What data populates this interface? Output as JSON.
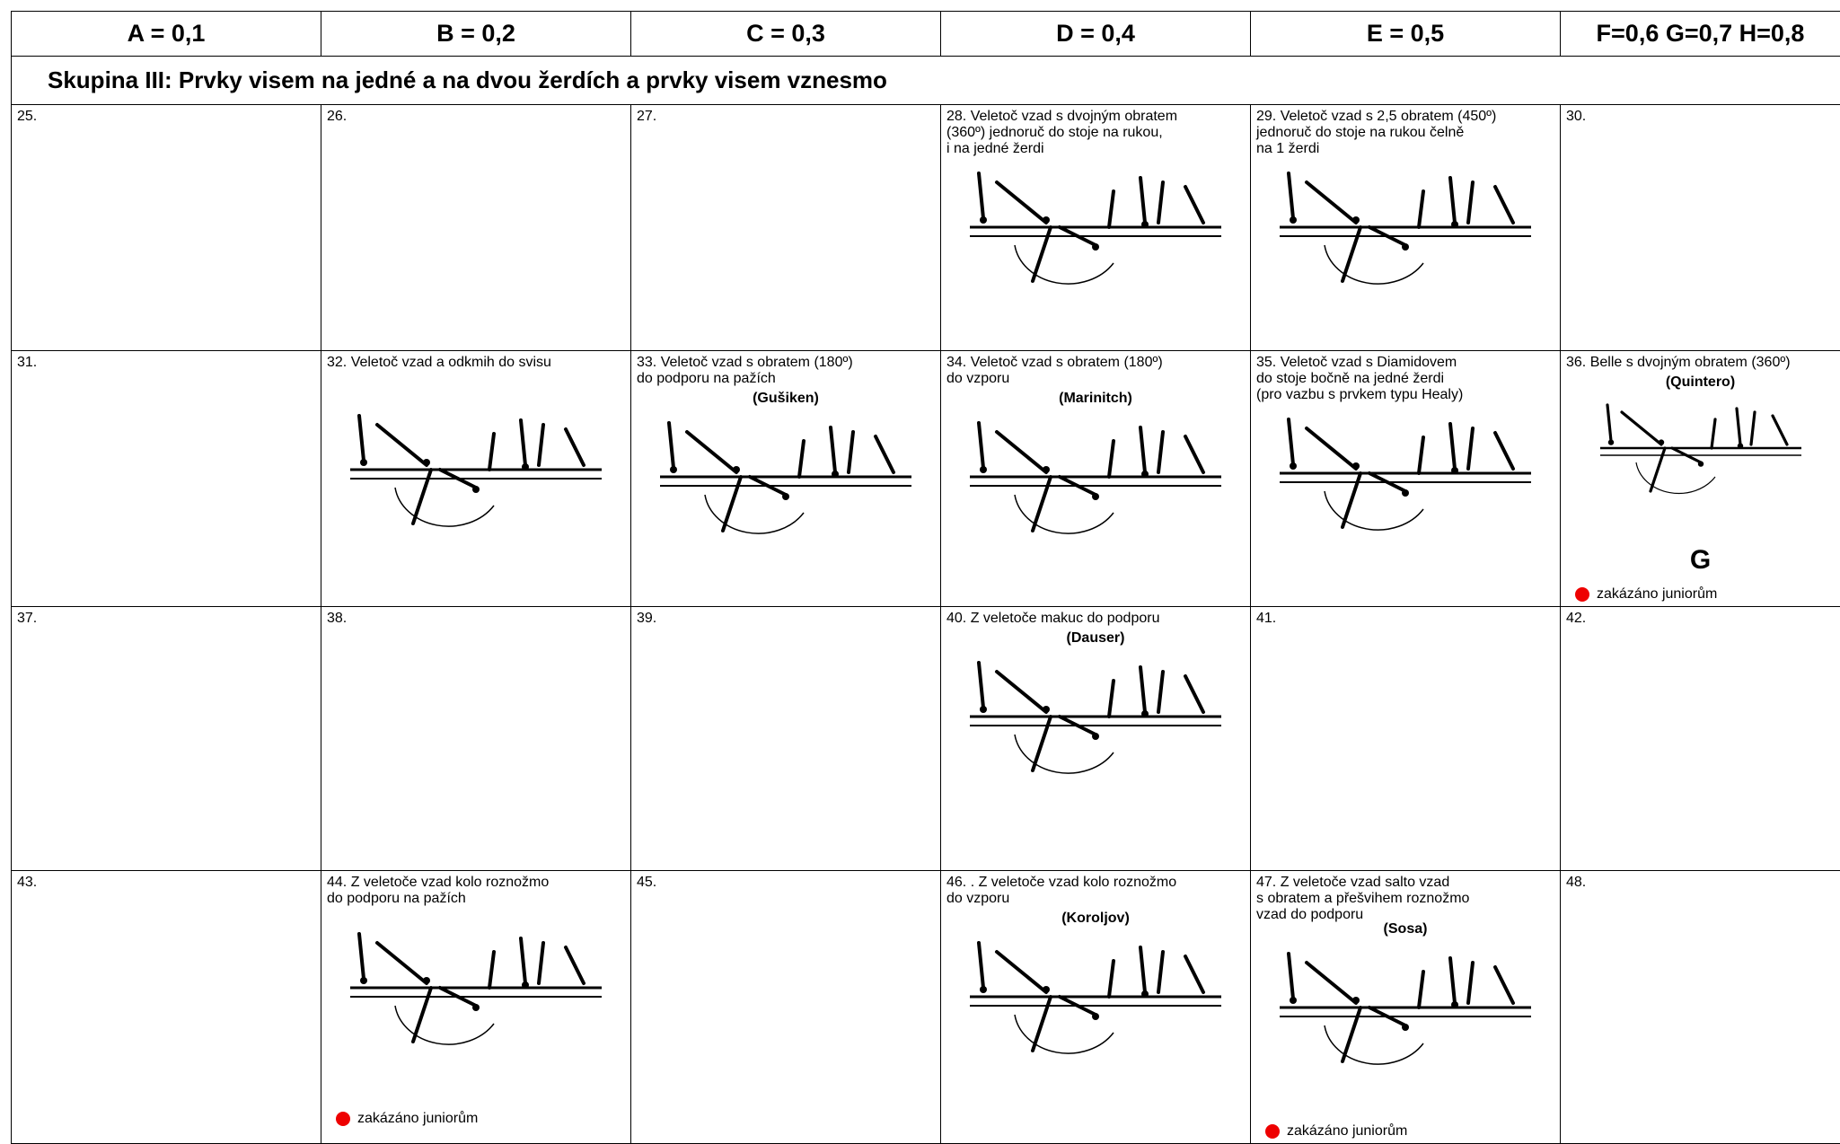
{
  "header": {
    "columns": [
      "A = 0,1",
      "B = 0,2",
      "C = 0,3",
      "D = 0,4",
      "E = 0,5",
      "F=0,6 G=0,7 H=0,8"
    ]
  },
  "section": {
    "title": "Skupina III: Prvky visem na jedné a na dvou žerdích a prvky visem vznesmo"
  },
  "rows": [
    [
      {
        "lines": [
          "25."
        ]
      },
      {
        "lines": [
          "26."
        ]
      },
      {
        "lines": [
          "27."
        ]
      },
      {
        "lines": [
          "28. Veletoč vzad s dvojným obratem",
          "(360º) jednoruč do stoje na rukou,",
          "i na jedné žerdi"
        ]
      },
      {
        "lines": [
          "29. Veletoč vzad s 2,5 obratem (450º)",
          "jednoruč do stoje na rukou čelně",
          "na 1 žerdi"
        ]
      },
      {
        "lines": [
          "30."
        ]
      }
    ],
    [
      {
        "lines": [
          "31."
        ]
      },
      {
        "lines": [
          "32. Veletoč vzad a odkmih do svisu"
        ]
      },
      {
        "lines": [
          "33. Veletoč vzad s obratem (180º)",
          "do podporu na pažích"
        ],
        "name": "(Gušiken)"
      },
      {
        "lines": [
          "34. Veletoč vzad s obratem (180º)",
          "do vzporu"
        ],
        "name": "(Marinitch)"
      },
      {
        "lines": [
          "35. Veletoč vzad s Diamidovem",
          "do stoje bočně na jedné žerdi",
          "(pro vazbu s prvkem typu Healy)"
        ]
      },
      {
        "lines": [
          "36. Belle s dvojným obratem (360º)"
        ],
        "name": "(Quintero)",
        "grade": "G",
        "note": "zakázáno juniorům"
      }
    ],
    [
      {
        "lines": [
          "37."
        ]
      },
      {
        "lines": [
          "38."
        ]
      },
      {
        "lines": [
          "39."
        ]
      },
      {
        "lines": [
          "40. Z veletoče makuc do podporu"
        ],
        "name": "(Dauser)"
      },
      {
        "lines": [
          "41."
        ]
      },
      {
        "lines": [
          "42."
        ]
      }
    ],
    [
      {
        "lines": [
          "43."
        ]
      },
      {
        "lines": [
          "44. Z veletoče vzad kolo roznožmo",
          "do podporu na pažích"
        ],
        "note": "zakázáno juniorům"
      },
      {
        "lines": [
          "45."
        ]
      },
      {
        "lines": [
          "46. . Z veletoče vzad kolo roznožmo",
          "do vzporu"
        ],
        "name": "(Koroljov)"
      },
      {
        "lines": [
          "47. Z veletoče vzad salto vzad",
          "s obratem a přešvihem roznožmo",
          "vzad do podporu"
        ],
        "name": "(Sosa)",
        "note": "zakázáno juniorům"
      },
      {
        "lines": [
          "48."
        ]
      }
    ]
  ]
}
